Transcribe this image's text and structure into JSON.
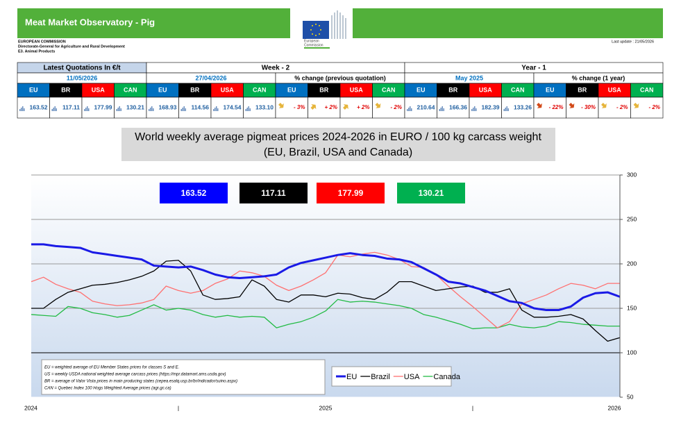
{
  "header": {
    "title": "Meat Market Observatory - Pig",
    "org_lines": [
      "EUROPEAN COMMISSION",
      "Directorate-General for Agriculture and Rural Development",
      "E3. Animal Products"
    ],
    "logo_text": [
      "European",
      "Commission"
    ],
    "last_update": "Last update :  21/05/2026"
  },
  "table": {
    "group_headers": [
      "Latest Quotations In €/t",
      "Week - 2",
      "Year - 1"
    ],
    "sub_headers": [
      "11/05/2026",
      "27/04/2026",
      "% change (previous quotation)",
      "May 2025",
      "% change (1 year)"
    ],
    "regions": [
      "EU",
      "BR",
      "USA",
      "CAN"
    ],
    "latest": [
      "163.52",
      "117.11",
      "177.99",
      "130.21"
    ],
    "week2": [
      "168.93",
      "114.56",
      "174.54",
      "133.10"
    ],
    "week2_change": [
      "- 3%",
      "+ 2%",
      "+ 2%",
      "- 2%"
    ],
    "year1": [
      "210.64",
      "166.36",
      "182.39",
      "133.26"
    ],
    "year1_change": [
      "- 22%",
      "- 30%",
      "- 2%",
      "- 2%"
    ]
  },
  "chart_data": {
    "type": "line",
    "title": "World weekly average pigmeat prices 2024-2026 in EURO / 100 kg carcass weight",
    "subtitle": "(EU, Brazil, USA and Canada)",
    "current_values": [
      163.52,
      117.11,
      177.99,
      130.21
    ],
    "notes": [
      "EU    = weighted average of EU Member States prices for classes S and E.",
      "US    = weekly USDA national weighted average carcass prices (https://mpr.datamart.ams.usda.gov)",
      "BR    = average of Valor Vista prices in main producing states (cepea.esalq.usp.br/br/indicador/suino.aspx)",
      "CAN = Quebec Index 100 Hogs Weighted Average prices (agr.gc.ca)"
    ],
    "categories": [
      "2024",
      null,
      null,
      null,
      null,
      null,
      null,
      null,
      null,
      null,
      null,
      null,
      "|",
      null,
      null,
      null,
      null,
      null,
      null,
      null,
      null,
      null,
      null,
      null,
      "2025",
      null,
      null,
      null,
      null,
      null,
      null,
      null,
      null,
      null,
      null,
      null,
      "|",
      null,
      null,
      null,
      null,
      null,
      null,
      null,
      null,
      null,
      null,
      null,
      "2026"
    ],
    "series": [
      {
        "name": "EU",
        "color": "#1a1ae6",
        "box_color": "#0000ff",
        "values": [
          222,
          222,
          220,
          219,
          218,
          213,
          211,
          209,
          207,
          205,
          198,
          197,
          196,
          197,
          193,
          188,
          185,
          184,
          185,
          186,
          188,
          196,
          201,
          204,
          207,
          210,
          212,
          210,
          209,
          206,
          205,
          202,
          195,
          188,
          180,
          178,
          174,
          170,
          164,
          158,
          156,
          150,
          148,
          148,
          152,
          162,
          167,
          168,
          163
        ]
      },
      {
        "name": "Brazil",
        "color": "#000000",
        "box_color": "#000000",
        "values": [
          150,
          150,
          160,
          168,
          172,
          176,
          177,
          179,
          182,
          186,
          192,
          203,
          204,
          192,
          165,
          160,
          161,
          163,
          182,
          175,
          160,
          157,
          165,
          165,
          163,
          167,
          166,
          162,
          160,
          168,
          180,
          180,
          175,
          170,
          172,
          174,
          175,
          168,
          168,
          172,
          148,
          140,
          140,
          141,
          143,
          138,
          125,
          113,
          117
        ]
      },
      {
        "name": "USA",
        "color": "#ff7070",
        "box_color": "#ff0000",
        "values": [
          180,
          185,
          177,
          172,
          168,
          158,
          155,
          153,
          154,
          156,
          160,
          175,
          170,
          167,
          170,
          178,
          183,
          192,
          190,
          186,
          176,
          170,
          175,
          182,
          190,
          210,
          208,
          211,
          213,
          210,
          205,
          197,
          196,
          188,
          175,
          163,
          152,
          140,
          128,
          135,
          155,
          160,
          165,
          172,
          178,
          176,
          172,
          178,
          178
        ]
      },
      {
        "name": "Canada",
        "color": "#22bb44",
        "box_color": "#00b050",
        "values": [
          143,
          142,
          141,
          152,
          150,
          145,
          143,
          140,
          142,
          148,
          154,
          148,
          150,
          148,
          143,
          140,
          142,
          140,
          141,
          140,
          128,
          132,
          135,
          140,
          147,
          160,
          157,
          158,
          157,
          155,
          153,
          150,
          143,
          140,
          136,
          132,
          127,
          128,
          128,
          132,
          129,
          128,
          130,
          135,
          134,
          132,
          131,
          130,
          130
        ]
      }
    ],
    "ylim": [
      50,
      300
    ],
    "yticks": [
      50,
      100,
      150,
      200,
      250,
      300
    ],
    "grid": true
  }
}
